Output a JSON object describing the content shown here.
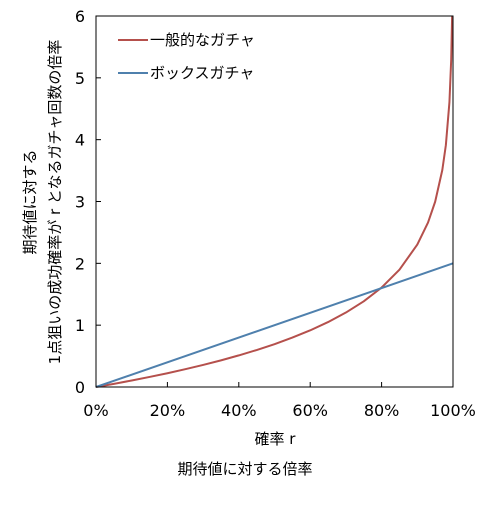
{
  "chart_data": {
    "type": "line",
    "caption": "期待値に対する倍率",
    "xlabel": "確率 r",
    "ylabel_lines": [
      "期待値に対する",
      "1点狙いの成功確率が r となるガチャ回数の倍率"
    ],
    "xlim": [
      0,
      1
    ],
    "ylim": [
      0,
      6
    ],
    "x_ticks": [
      0,
      0.2,
      0.4,
      0.6,
      0.8,
      1.0
    ],
    "x_tick_labels": [
      "0%",
      "20%",
      "40%",
      "60%",
      "80%",
      "100%"
    ],
    "y_ticks": [
      0,
      1,
      2,
      3,
      4,
      5,
      6
    ],
    "y_tick_labels": [
      "0",
      "1",
      "2",
      "3",
      "4",
      "5",
      "6"
    ],
    "grid": false,
    "legend_position": "top-left",
    "series": [
      {
        "name": "一般的なガチャ",
        "color": "#b5504c",
        "x": [
          0,
          0.05,
          0.1,
          0.15,
          0.2,
          0.25,
          0.3,
          0.35,
          0.4,
          0.45,
          0.5,
          0.55,
          0.6,
          0.65,
          0.7,
          0.75,
          0.8,
          0.85,
          0.9,
          0.93,
          0.95,
          0.97,
          0.98,
          0.99,
          0.995,
          0.9975
        ],
        "values": [
          0,
          0.051,
          0.105,
          0.163,
          0.223,
          0.288,
          0.357,
          0.431,
          0.511,
          0.598,
          0.693,
          0.799,
          0.916,
          1.05,
          1.204,
          1.386,
          1.609,
          1.897,
          2.303,
          2.659,
          2.996,
          3.507,
          3.912,
          4.605,
          5.298,
          5.991
        ]
      },
      {
        "name": "ボックスガチャ",
        "color": "#4f80ad",
        "x": [
          0,
          1
        ],
        "values": [
          0,
          2
        ]
      }
    ]
  }
}
